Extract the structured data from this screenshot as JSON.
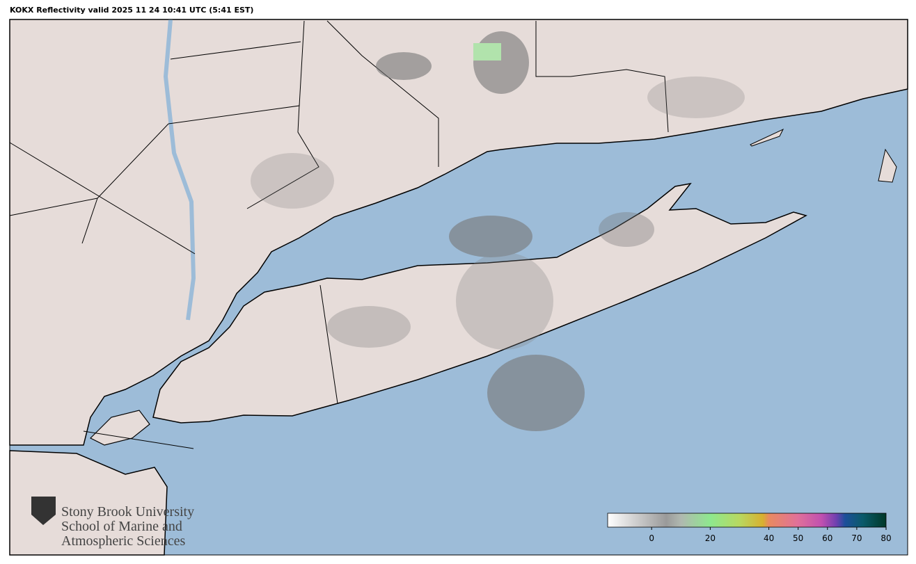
{
  "header": {
    "title": "KOKX Reflectivity valid 2025 11 24 10:41 UTC (5:41 EST)"
  },
  "logo": {
    "lines": [
      "Stony Brook University",
      "School of Marine and",
      "Atmospheric Sciences"
    ]
  },
  "colorbar": {
    "lim": [
      -15,
      80
    ],
    "ticks": [
      0,
      20,
      40,
      50,
      60,
      70,
      80
    ],
    "stops": [
      {
        "value": -15,
        "color": "#ffffff"
      },
      {
        "value": 5,
        "color": "#9a9a9a"
      },
      {
        "value": 10,
        "color": "#b0b8b0"
      },
      {
        "value": 20,
        "color": "#8ee88e"
      },
      {
        "value": 30,
        "color": "#b8d860"
      },
      {
        "value": 38,
        "color": "#d8b030"
      },
      {
        "value": 40,
        "color": "#e88a60"
      },
      {
        "value": 50,
        "color": "#e0709a"
      },
      {
        "value": 58,
        "color": "#c050b0"
      },
      {
        "value": 63,
        "color": "#7040b0"
      },
      {
        "value": 66,
        "color": "#1c4f9a"
      },
      {
        "value": 72,
        "color": "#0a5a6a"
      },
      {
        "value": 80,
        "color": "#003828"
      }
    ]
  }
}
